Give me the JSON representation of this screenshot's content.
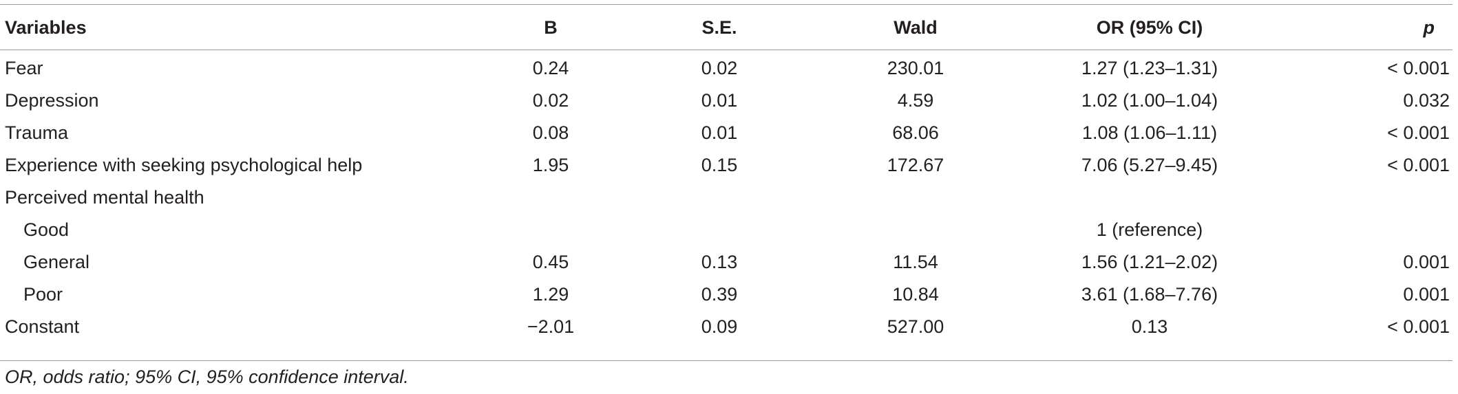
{
  "table": {
    "headers": {
      "variables": "Variables",
      "b": "B",
      "se": "S.E.",
      "wald": "Wald",
      "or": "OR (95% CI)",
      "p": "p"
    },
    "rows": [
      {
        "variable": "Fear",
        "b": "0.24",
        "se": "0.02",
        "wald": "230.01",
        "or": "1.27 (1.23–1.31)",
        "p": "< 0.001"
      },
      {
        "variable": "Depression",
        "b": "0.02",
        "se": "0.01",
        "wald": "4.59",
        "or": "1.02 (1.00–1.04)",
        "p": "0.032"
      },
      {
        "variable": "Trauma",
        "b": "0.08",
        "se": "0.01",
        "wald": "68.06",
        "or": "1.08 (1.06–1.11)",
        "p": "< 0.001"
      },
      {
        "variable": "Experience with seeking psychological help",
        "b": "1.95",
        "se": "0.15",
        "wald": "172.67",
        "or": "7.06 (5.27–9.45)",
        "p": "< 0.001"
      },
      {
        "variable": "Perceived mental health",
        "b": "",
        "se": "",
        "wald": "",
        "or": "",
        "p": ""
      },
      {
        "variable": "Good",
        "b": "",
        "se": "",
        "wald": "",
        "or": "1 (reference)",
        "p": ""
      },
      {
        "variable": "General",
        "b": "0.45",
        "se": "0.13",
        "wald": "11.54",
        "or": "1.56 (1.21–2.02)",
        "p": "0.001"
      },
      {
        "variable": "Poor",
        "b": "1.29",
        "se": "0.39",
        "wald": "10.84",
        "or": "3.61 (1.68–7.76)",
        "p": "0.001"
      },
      {
        "variable": "Constant",
        "b": "−2.01",
        "se": "0.09",
        "wald": "527.00",
        "or": "0.13",
        "p": "< 0.001"
      }
    ]
  },
  "footnote": "OR, odds ratio; 95% CI, 95% confidence interval."
}
